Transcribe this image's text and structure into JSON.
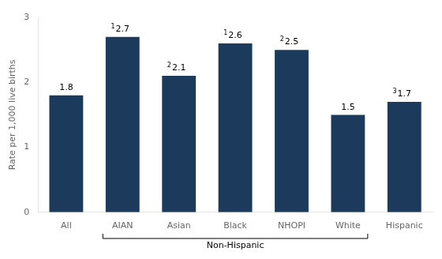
{
  "chart_data": {
    "type": "bar",
    "categories": [
      "All",
      "AIAN",
      "Asian",
      "Black",
      "NHOPI",
      "White",
      "Hispanic"
    ],
    "values": [
      1.8,
      2.7,
      2.1,
      2.6,
      2.5,
      1.5,
      1.7
    ],
    "color": "#1b3a5c",
    "ylabel": "Rate per 1,000 live births",
    "ylim": [
      0,
      3
    ],
    "yticks": [
      0,
      1,
      2,
      3
    ],
    "grid": false,
    "data_labels": true,
    "annotations": [
      {
        "text": "1",
        "category": "AIAN"
      },
      {
        "text": "2",
        "category": "Asian"
      },
      {
        "text": "1",
        "category": "Black"
      },
      {
        "text": "2",
        "category": "NHOPI"
      },
      {
        "text": "3",
        "category": "Hispanic"
      },
      {
        "text": "Non-Hispanic",
        "categories": [
          "AIAN",
          "Asian",
          "Black",
          "NHOPI",
          "White"
        ]
      }
    ]
  }
}
